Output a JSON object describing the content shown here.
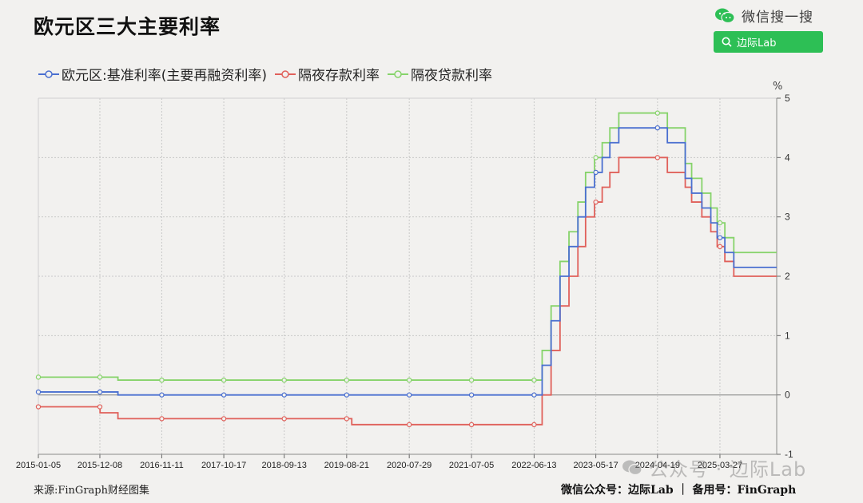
{
  "header": {
    "title": "欧元区三大主要利率",
    "wechat_label": "微信搜一搜",
    "search_text": "边际Lab"
  },
  "legend": [
    {
      "name": "欧元区:基准利率(主要再融资利率)",
      "color": "#4a6fd0"
    },
    {
      "name": "隔夜存款利率",
      "color": "#e0605a"
    },
    {
      "name": "隔夜贷款利率",
      "color": "#86d36a"
    }
  ],
  "unit_label": "%",
  "footer": {
    "source": "来源:FinGraph财经图集",
    "credit": "微信公众号：边际Lab ｜ 备用号：FinGraph",
    "watermark": "公众号 · 边际Lab"
  },
  "chart_data": {
    "type": "line",
    "step": true,
    "title": "欧元区三大主要利率",
    "ylabel": "%",
    "ylim": [
      -1,
      5
    ],
    "yticks": [
      -1,
      0,
      1,
      2,
      3,
      4,
      5
    ],
    "y_axis_position": "right",
    "xlim": [
      "2015-01-05",
      "2026-02-01"
    ],
    "xticks": [
      "2015-01-05",
      "2015-12-08",
      "2016-11-11",
      "2017-10-17",
      "2018-09-13",
      "2019-08-21",
      "2020-07-29",
      "2021-07-05",
      "2022-06-13",
      "2023-05-17",
      "2024-04-19",
      "2025-03-27"
    ],
    "grid": true,
    "legend_position": "top-left",
    "series": [
      {
        "name": "欧元区:基准利率(主要再融资利率)",
        "color": "#4a6fd0",
        "x": [
          "2015-01-05",
          "2016-03-16",
          "2022-07-27",
          "2022-09-14",
          "2022-11-02",
          "2022-12-21",
          "2023-02-08",
          "2023-03-22",
          "2023-05-10",
          "2023-06-21",
          "2023-08-02",
          "2023-09-20",
          "2024-06-12",
          "2024-09-18",
          "2024-10-23",
          "2024-12-18",
          "2025-02-05",
          "2025-03-12",
          "2025-04-23",
          "2025-06-11",
          "2026-02-01"
        ],
        "values": [
          0.05,
          0,
          0.5,
          1.25,
          2,
          2.5,
          3,
          3.5,
          3.75,
          4,
          4.25,
          4.5,
          4.25,
          3.65,
          3.4,
          3.15,
          2.9,
          2.65,
          2.4,
          2.15,
          2.15
        ]
      },
      {
        "name": "隔夜存款利率",
        "color": "#e0605a",
        "x": [
          "2015-01-05",
          "2015-12-09",
          "2016-03-16",
          "2019-09-18",
          "2022-07-27",
          "2022-09-14",
          "2022-11-02",
          "2022-12-21",
          "2023-02-08",
          "2023-03-22",
          "2023-05-10",
          "2023-06-21",
          "2023-08-02",
          "2023-09-20",
          "2024-06-12",
          "2024-09-18",
          "2024-10-23",
          "2024-12-18",
          "2025-02-05",
          "2025-03-12",
          "2025-04-23",
          "2025-06-11",
          "2026-02-01"
        ],
        "values": [
          -0.2,
          -0.3,
          -0.4,
          -0.5,
          0,
          0.75,
          1.5,
          2,
          2.5,
          3,
          3.25,
          3.5,
          3.75,
          4,
          3.75,
          3.5,
          3.25,
          3,
          2.75,
          2.5,
          2.25,
          2,
          2
        ]
      },
      {
        "name": "隔夜贷款利率",
        "color": "#86d36a",
        "x": [
          "2015-01-05",
          "2016-03-16",
          "2022-07-27",
          "2022-09-14",
          "2022-11-02",
          "2022-12-21",
          "2023-02-08",
          "2023-03-22",
          "2023-05-10",
          "2023-06-21",
          "2023-08-02",
          "2023-09-20",
          "2024-06-12",
          "2024-09-18",
          "2024-10-23",
          "2024-12-18",
          "2025-02-05",
          "2025-03-12",
          "2025-04-23",
          "2025-06-11",
          "2026-02-01"
        ],
        "values": [
          0.3,
          0.25,
          0.75,
          1.5,
          2.25,
          2.75,
          3.25,
          3.75,
          4,
          4.25,
          4.5,
          4.75,
          4.5,
          3.9,
          3.65,
          3.4,
          3.15,
          2.9,
          2.65,
          2.4,
          2.4
        ]
      }
    ]
  }
}
